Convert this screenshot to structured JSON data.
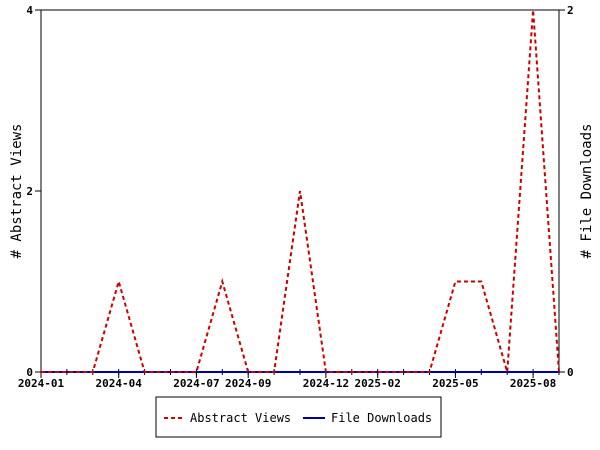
{
  "chart_data": {
    "type": "line",
    "x_ticks": [
      "2024-01",
      "2024-04",
      "2024-07",
      "2024-09",
      "2024-12",
      "2025-02",
      "2025-05",
      "2025-08"
    ],
    "x_months": [
      "2024-01",
      "2024-02",
      "2024-03",
      "2024-04",
      "2024-05",
      "2024-06",
      "2024-07",
      "2024-08",
      "2024-09",
      "2024-10",
      "2024-11",
      "2024-12",
      "2025-01",
      "2025-02",
      "2025-03",
      "2025-04",
      "2025-05",
      "2025-06",
      "2025-07",
      "2025-08",
      "2025-09"
    ],
    "ylabel": "# Abstract Views",
    "y2label": "# File Downloads",
    "ylim": [
      0,
      4
    ],
    "y_ticks": [
      "0",
      "2",
      "4"
    ],
    "y2lim": [
      0,
      2
    ],
    "y2_ticks": [
      "0",
      "2"
    ],
    "series": [
      {
        "name": "Abstract Views",
        "axis": "left",
        "color": "#cc0000",
        "style": "dashed",
        "values": [
          0,
          0,
          0,
          1,
          0,
          0,
          0,
          1,
          0,
          0,
          2,
          0,
          0,
          0,
          0,
          0,
          1,
          1,
          0,
          4,
          0
        ]
      },
      {
        "name": "File Downloads",
        "axis": "right",
        "color": "#0000aa",
        "style": "solid",
        "values": [
          0,
          0,
          0,
          0,
          0,
          0,
          0,
          0,
          0,
          0,
          0,
          0,
          0,
          0,
          0,
          0,
          0,
          0,
          0,
          0,
          0
        ]
      }
    ],
    "legend_position": "bottom-center",
    "grid": false
  }
}
